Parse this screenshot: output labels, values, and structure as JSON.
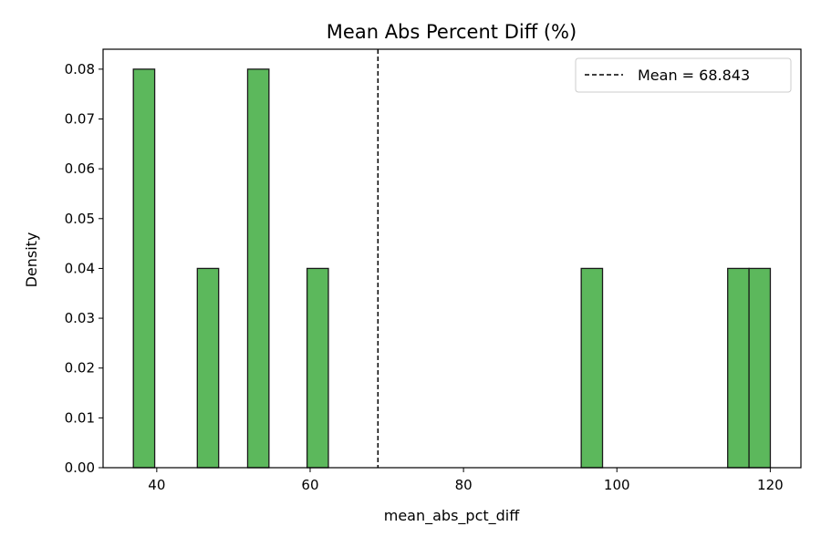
{
  "chart_data": {
    "type": "bar",
    "subtype": "histogram",
    "title": "Mean Abs Percent Diff (%)",
    "xlabel": "mean_abs_pct_diff",
    "ylabel": "Density",
    "xlim": [
      33.0,
      124.0
    ],
    "ylim": [
      0.0,
      0.084
    ],
    "x_ticks": [
      40,
      60,
      80,
      100,
      120
    ],
    "y_ticks": [
      0.0,
      0.01,
      0.02,
      0.03,
      0.04,
      0.05,
      0.06,
      0.07,
      0.08
    ],
    "y_tick_labels": [
      "0.00",
      "0.01",
      "0.02",
      "0.03",
      "0.04",
      "0.05",
      "0.06",
      "0.07",
      "0.08"
    ],
    "bin_width": 2.78,
    "bins": [
      {
        "x_start": 36.95,
        "density": 0.08
      },
      {
        "x_start": 45.29,
        "density": 0.04
      },
      {
        "x_start": 51.85,
        "density": 0.08
      },
      {
        "x_start": 59.6,
        "density": 0.04
      },
      {
        "x_start": 95.35,
        "density": 0.04
      },
      {
        "x_start": 114.45,
        "density": 0.04
      },
      {
        "x_start": 117.23,
        "density": 0.04
      }
    ],
    "bar_color": "#5cb85c",
    "bar_edge_color": "#1a1a1a",
    "mean_line": {
      "value": 68.843,
      "style": "dashed",
      "color": "#000000"
    },
    "legend": {
      "placement": "top-right",
      "label": "Mean = 68.843"
    },
    "grid": false
  }
}
